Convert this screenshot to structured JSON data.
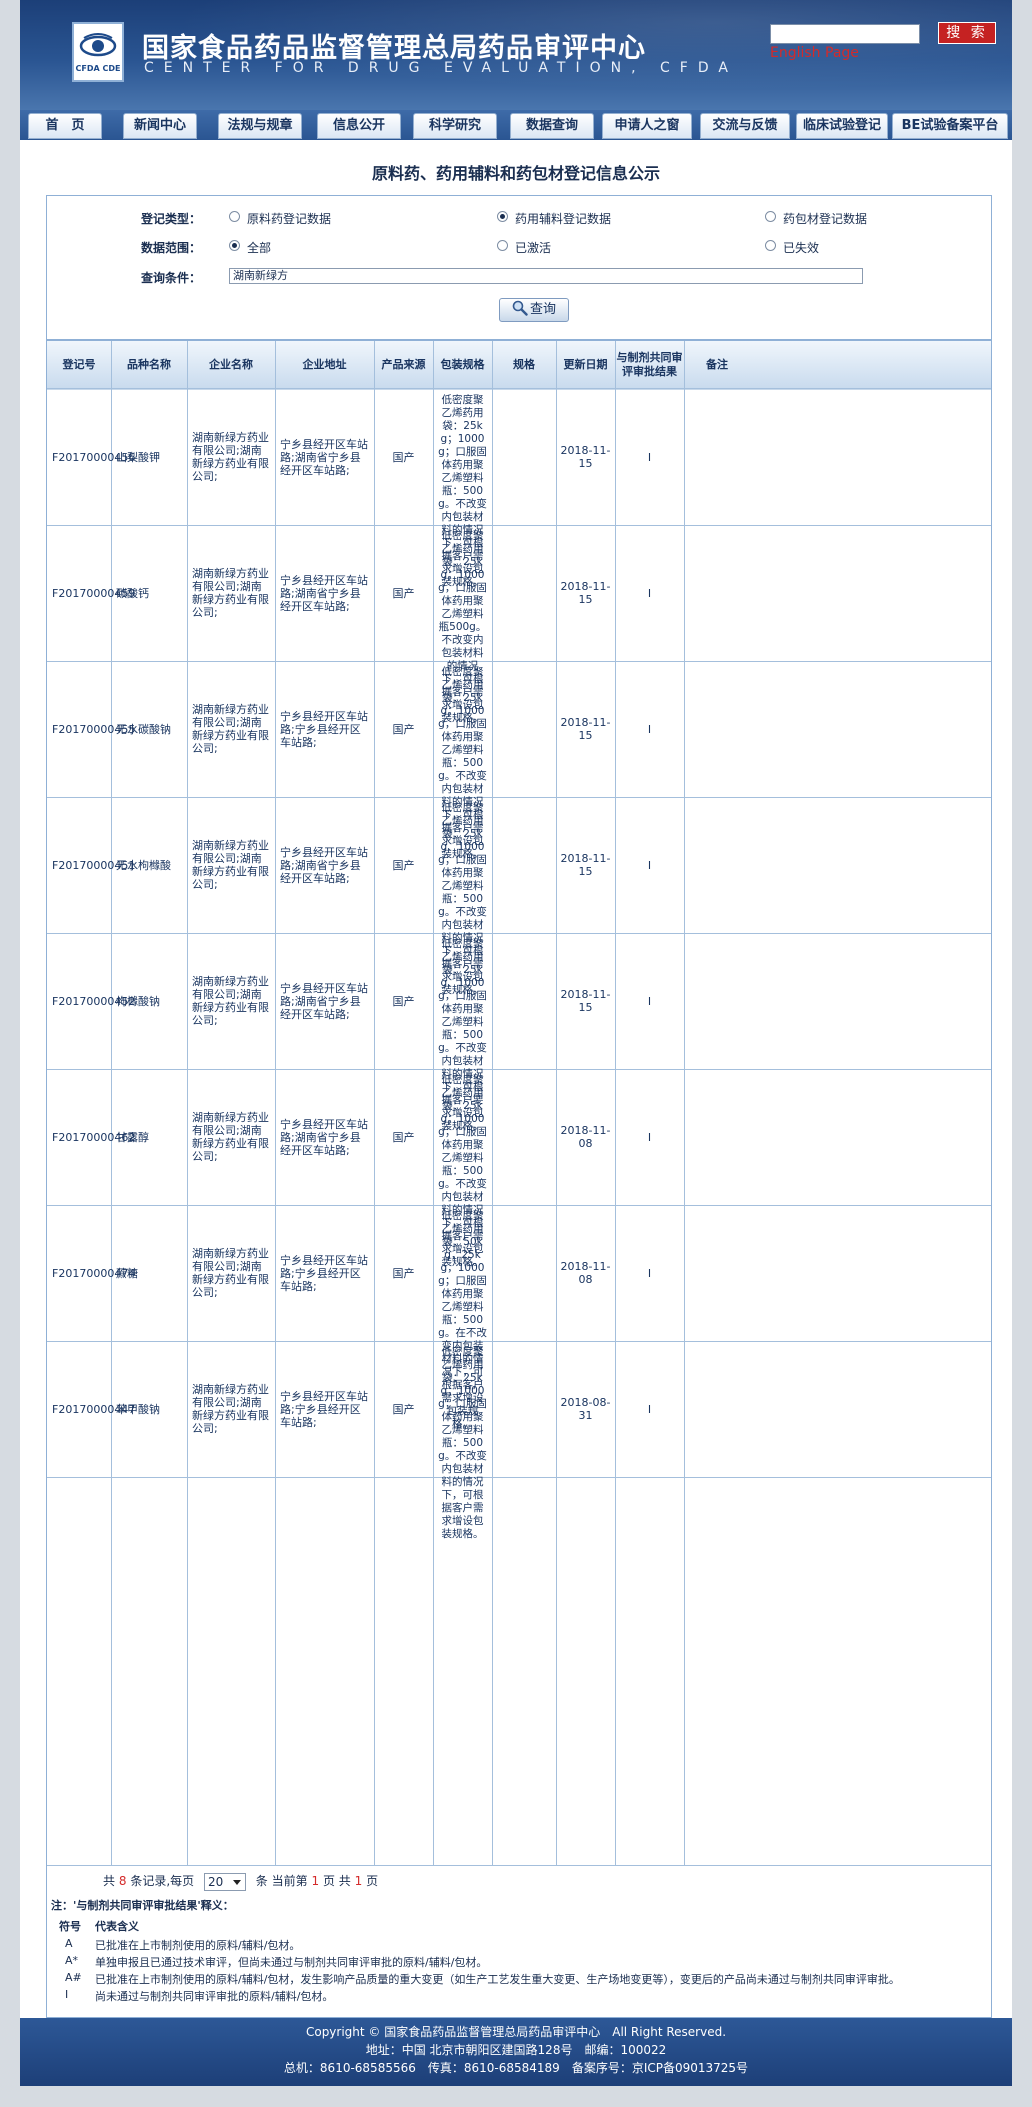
{
  "header": {
    "title_cn": "国家食品药品监督管理总局药品审评中心",
    "title_en": "CENTER FOR DRUG EVALUATION, CFDA",
    "logo_text": "CFDA CDE",
    "search_button": "搜 索",
    "english_link": "English Page"
  },
  "nav": [
    "首　页",
    "新闻中心",
    "法规与规章",
    "信息公开",
    "科学研究",
    "数据查询",
    "申请人之窗",
    "交流与反馈",
    "临床试验登记",
    "BE试验备案平台"
  ],
  "page_title": "原料药、药用辅料和药包材登记信息公示",
  "form": {
    "type_label": "登记类型：",
    "type_options": [
      "原料药登记数据",
      "药用辅料登记数据",
      "药包材登记数据"
    ],
    "type_selected": 1,
    "range_label": "数据范围：",
    "range_options": [
      "全部",
      "已激活",
      "已失效"
    ],
    "range_selected": 0,
    "query_label": "查询条件：",
    "query_value": "湖南新绿方",
    "query_button": "查询"
  },
  "table": {
    "headers": [
      "登记号",
      "品种名称",
      "企业名称",
      "企业地址",
      "产品来源",
      "包装规格",
      "规格",
      "更新日期",
      "与制剂共同审评审批结果",
      "备注"
    ],
    "rows": [
      {
        "reg_no": "F20170000456",
        "name": "山梨酸钾",
        "company": "湖南新绿方药业有限公司;湖南新绿方药业有限公司;",
        "address": "宁乡县经开区车站路;湖南省宁乡县经开区车站路;",
        "source": "国产",
        "packaging": "低密度聚乙烯药用袋：25kg；1000g；口服固体药用聚乙烯塑料瓶：500g。不改变内包装材料的情况下，可根据客户需求增设包装规格。",
        "spec": "",
        "date": "2018-11-15",
        "result": "I",
        "remark": ""
      },
      {
        "reg_no": "F20170000459",
        "name": "碳酸钙",
        "company": "湖南新绿方药业有限公司;湖南新绿方药业有限公司;",
        "address": "宁乡县经开区车站路;湖南省宁乡县经开区车站路;",
        "source": "国产",
        "packaging": "低密度聚乙烯药用袋：25kg；1000g，口服固体药用聚乙烯塑料瓶500g。不改变内包装材料的情况下，可根据客户需求增设包装规格。",
        "spec": "",
        "date": "2018-11-15",
        "result": "I",
        "remark": ""
      },
      {
        "reg_no": "F20170000455",
        "name": "无水碳酸钠",
        "company": "湖南新绿方药业有限公司;湖南新绿方药业有限公司;",
        "address": "宁乡县经开区车站路;宁乡县经开区车站路;",
        "source": "国产",
        "packaging": "低密度聚乙烯药用袋：25kg；1000g，口服固体药用聚乙烯塑料瓶：500g。不改变内包装材料的情况下，可根据客户需求增设包装规格。",
        "spec": "",
        "date": "2018-11-15",
        "result": "I",
        "remark": ""
      },
      {
        "reg_no": "F20170000451",
        "name": "无水枸橼酸",
        "company": "湖南新绿方药业有限公司;湖南新绿方药业有限公司;",
        "address": "宁乡县经开区车站路;湖南省宁乡县经开区车站路;",
        "source": "国产",
        "packaging": "低密度聚乙烯药用袋：25kg、1000g；口服固体药用聚乙烯塑料瓶：500g。不改变内包装材料的情况下，可根据客户需求增设包装规格。",
        "spec": "",
        "date": "2018-11-15",
        "result": "I",
        "remark": ""
      },
      {
        "reg_no": "F20170000452",
        "name": "枸橼酸钠",
        "company": "湖南新绿方药业有限公司;湖南新绿方药业有限公司;",
        "address": "宁乡县经开区车站路;湖南省宁乡县经开区车站路;",
        "source": "国产",
        "packaging": "低密度聚乙烯药用袋：25kg、1000g，口服固体药用聚乙烯塑料瓶：500g。不改变内包装材料的情况下，可根据客户要求增设包装规格。",
        "spec": "",
        "date": "2018-11-15",
        "result": "I",
        "remark": ""
      },
      {
        "reg_no": "F20170000462",
        "name": "甘露醇",
        "company": "湖南新绿方药业有限公司;湖南新绿方药业有限公司;",
        "address": "宁乡县经开区车站路;湖南省宁乡县经开区车站路;",
        "source": "国产",
        "packaging": "低密度聚乙烯药用袋：25kg；1000g；口服固体药用聚乙烯塑料瓶：500g。不改变内包装材料的情况下，可根据客户需求增设包装规格。",
        "spec": "",
        "date": "2018-11-08",
        "result": "I",
        "remark": ""
      },
      {
        "reg_no": "F20170000474",
        "name": "蔗糖",
        "company": "湖南新绿方药业有限公司;湖南新绿方药业有限公司;",
        "address": "宁乡县经开区车站路;宁乡县经开区车站路;",
        "source": "国产",
        "packaging": "低密度聚乙烯药用袋：50kg，25kg，1000g；口服固体药用聚乙烯塑料瓶：500g。在不改变内包装材料的情况下，可根据客户需求增设包装规格。",
        "spec": "",
        "date": "2018-11-08",
        "result": "I",
        "remark": ""
      },
      {
        "reg_no": "F20170000447",
        "name": "苯甲酸钠",
        "company": "湖南新绿方药业有限公司;湖南新绿方药业有限公司;",
        "address": "宁乡县经开区车站路;宁乡县经开区车站路;",
        "source": "国产",
        "packaging": "低密度聚乙烯药用袋：25kg；1000g；口服固体药用聚乙烯塑料瓶：500g。不改变内包装材料的情况下，可根据客户需求增设包装规格。",
        "spec": "",
        "date": "2018-08-31",
        "result": "I",
        "remark": ""
      }
    ]
  },
  "pager": {
    "total_prefix": "共",
    "total": "8",
    "total_suffix": "条记录,每页",
    "page_size": "20",
    "unit": "条",
    "current_prefix": "当前第",
    "current": "1",
    "current_suffix": "页 共",
    "pages": "1",
    "pages_suffix": "页"
  },
  "notes": {
    "title": "注：'与制剂共同审评审批结果'释义：",
    "col_symbol": "符号",
    "col_meaning": "代表含义",
    "items": [
      {
        "symbol": "A",
        "meaning": "已批准在上市制剂使用的原料/辅料/包材。"
      },
      {
        "symbol": "A*",
        "meaning": "单独申报且已通过技术审评，但尚未通过与制剂共同审评审批的原料/辅料/包材。"
      },
      {
        "symbol": "A#",
        "meaning": "已批准在上市制剂使用的原料/辅料/包材，发生影响产品质量的重大变更（如生产工艺发生重大变更、生产场地变更等），变更后的产品尚未通过与制剂共同审评审批。"
      },
      {
        "symbol": "I",
        "meaning": "尚未通过与制剂共同审评审批的原料/辅料/包材。"
      }
    ]
  },
  "footer": {
    "line1": "Copyright © 国家食品药品监督管理总局药品审评中心　All Right Reserved.",
    "line2": "地址：中国 北京市朝阳区建国路128号　邮编：100022",
    "line3": "总机：8610-68585566　传真：8610-68584189　备案序号：京ICP备09013725号"
  },
  "colors": {
    "header_blue": "#2a5592",
    "accent_red": "#c52222",
    "link_red": "#d42a2a",
    "text_navy": "#1a3560"
  }
}
